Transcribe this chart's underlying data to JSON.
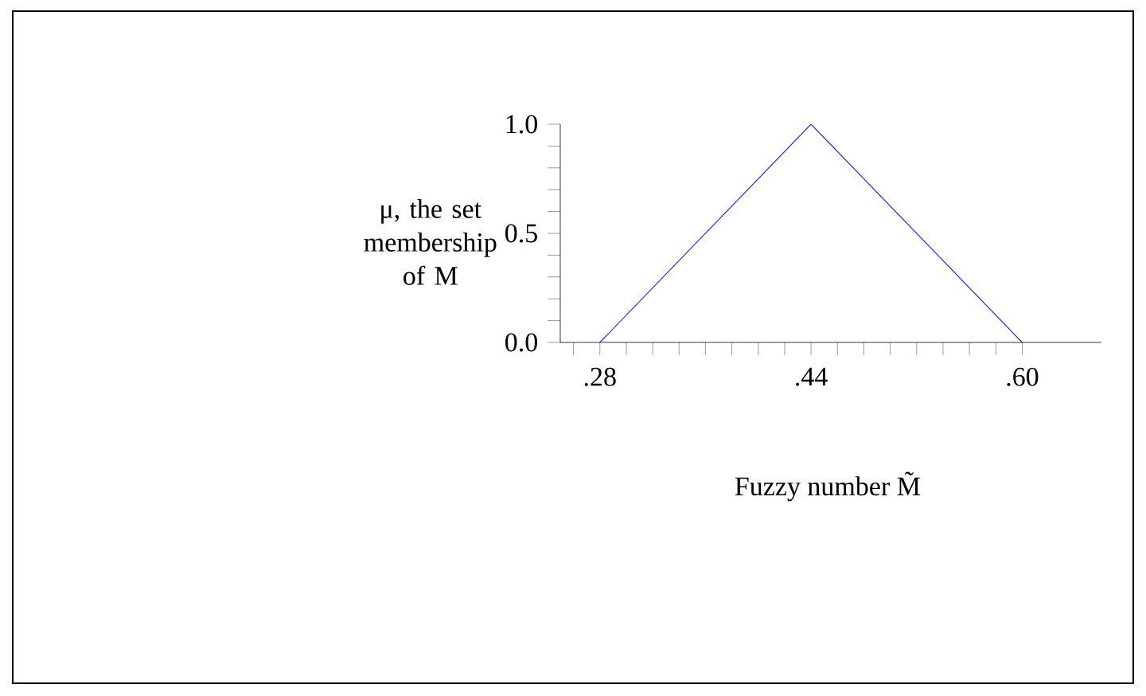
{
  "chart_data": {
    "type": "line",
    "xlabel": "Fuzzy number M̃",
    "ylabel": "μ, the set membership of M",
    "x": [
      0.28,
      0.44,
      0.6
    ],
    "series": [
      {
        "color": "#2a2ad0",
        "values": [
          0,
          1,
          0
        ]
      }
    ],
    "xlim": [
      0.25,
      0.66
    ],
    "ylim": [
      0,
      1
    ],
    "xticks": [
      {
        "value": 0.26,
        "label": null
      },
      {
        "value": 0.28,
        "label": ".28"
      },
      {
        "value": 0.3,
        "label": null
      },
      {
        "value": 0.32,
        "label": null
      },
      {
        "value": 0.34,
        "label": null
      },
      {
        "value": 0.36,
        "label": null
      },
      {
        "value": 0.38,
        "label": null
      },
      {
        "value": 0.4,
        "label": null
      },
      {
        "value": 0.42,
        "label": null
      },
      {
        "value": 0.44,
        "label": ".44"
      },
      {
        "value": 0.46,
        "label": null
      },
      {
        "value": 0.48,
        "label": null
      },
      {
        "value": 0.5,
        "label": null
      },
      {
        "value": 0.52,
        "label": null
      },
      {
        "value": 0.54,
        "label": null
      },
      {
        "value": 0.56,
        "label": null
      },
      {
        "value": 0.58,
        "label": null
      },
      {
        "value": 0.6,
        "label": ".60"
      }
    ],
    "yticks": [
      {
        "value": 0,
        "label": "0.0"
      },
      {
        "value": 0.1,
        "label": null
      },
      {
        "value": 0.2,
        "label": null
      },
      {
        "value": 0.3,
        "label": null
      },
      {
        "value": 0.4,
        "label": null
      },
      {
        "value": 0.5,
        "label": "0.5"
      },
      {
        "value": 0.6,
        "label": null
      },
      {
        "value": 0.7,
        "label": null
      },
      {
        "value": 0.8,
        "label": null
      },
      {
        "value": 0.9,
        "label": null
      },
      {
        "value": 1,
        "label": "1.0"
      }
    ],
    "grid": false,
    "legend": false,
    "marker": "none",
    "line_style": "solid"
  }
}
